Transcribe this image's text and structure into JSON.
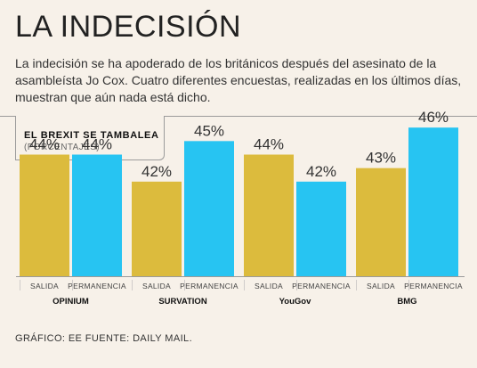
{
  "header": {
    "title": "LA INDECISIÓN",
    "intro": "La indecisión se ha apoderado de los británicos después del asesinato de la asambleísta Jo Cox. Cuatro diferentes encuestas, realizadas en los últimos días, muestran que aún nada está dicho."
  },
  "chart_data": {
    "type": "bar",
    "title": "EL BREXIT SE TAMBALEA",
    "subtitle": "(PORCENTAJES)",
    "categories": [
      "OPINIUM",
      "SURVATION",
      "YouGov",
      "BMG"
    ],
    "series": [
      {
        "name": "SALIDA",
        "values": [
          44,
          42,
          44,
          43
        ]
      },
      {
        "name": "PERMANENCIA",
        "values": [
          44,
          45,
          42,
          46
        ]
      }
    ],
    "value_suffix": "%",
    "ylim": [
      35,
      47
    ],
    "colors": {
      "SALIDA": "#dcbb3d",
      "PERMANENCIA": "#27c4f2"
    }
  },
  "footer": {
    "source": "GRÁFICO: EE FUENTE: DAILY MAIL."
  }
}
